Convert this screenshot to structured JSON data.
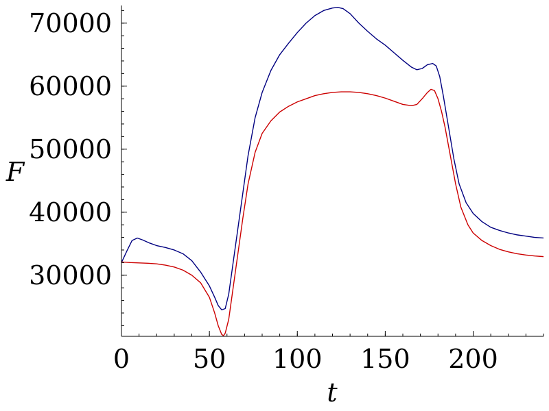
{
  "chart_data": {
    "type": "line",
    "title": "",
    "xlabel": "t",
    "ylabel": "F",
    "xlim": [
      0,
      240
    ],
    "ylim": [
      20300,
      72800
    ],
    "x_ticks": [
      {
        "value": 0,
        "label": "0"
      },
      {
        "value": 50,
        "label": "50"
      },
      {
        "value": 100,
        "label": "100"
      },
      {
        "value": 150,
        "label": "150"
      },
      {
        "value": 200,
        "label": "200"
      }
    ],
    "y_ticks": [
      {
        "value": 30000,
        "label": "30000"
      },
      {
        "value": 40000,
        "label": "40000"
      },
      {
        "value": 50000,
        "label": "50000"
      },
      {
        "value": 60000,
        "label": "60000"
      },
      {
        "value": 70000,
        "label": "70000"
      }
    ],
    "x_minor_step": 10,
    "y_minor_step": 2000,
    "grid": false,
    "legend": "none",
    "series": [
      {
        "color": "#000080",
        "points": [
          [
            0,
            32000
          ],
          [
            3,
            33800
          ],
          [
            6,
            35500
          ],
          [
            9,
            35900
          ],
          [
            12,
            35600
          ],
          [
            16,
            35100
          ],
          [
            20,
            34700
          ],
          [
            25,
            34400
          ],
          [
            30,
            34000
          ],
          [
            35,
            33400
          ],
          [
            40,
            32300
          ],
          [
            45,
            30500
          ],
          [
            50,
            28300
          ],
          [
            53,
            26500
          ],
          [
            55,
            25200
          ],
          [
            57,
            24500
          ],
          [
            59,
            24700
          ],
          [
            61,
            27000
          ],
          [
            63,
            31000
          ],
          [
            66,
            37000
          ],
          [
            69,
            43000
          ],
          [
            72,
            49000
          ],
          [
            76,
            55000
          ],
          [
            80,
            59000
          ],
          [
            85,
            62500
          ],
          [
            90,
            65000
          ],
          [
            95,
            66800
          ],
          [
            100,
            68500
          ],
          [
            105,
            70000
          ],
          [
            110,
            71200
          ],
          [
            115,
            72000
          ],
          [
            120,
            72400
          ],
          [
            123,
            72500
          ],
          [
            126,
            72300
          ],
          [
            130,
            71500
          ],
          [
            135,
            70000
          ],
          [
            140,
            68700
          ],
          [
            145,
            67500
          ],
          [
            150,
            66500
          ],
          [
            155,
            65300
          ],
          [
            160,
            64100
          ],
          [
            165,
            63000
          ],
          [
            168,
            62600
          ],
          [
            171,
            62800
          ],
          [
            174,
            63400
          ],
          [
            177,
            63600
          ],
          [
            179,
            63200
          ],
          [
            181,
            61500
          ],
          [
            183,
            58500
          ],
          [
            186,
            53500
          ],
          [
            189,
            48500
          ],
          [
            192,
            44500
          ],
          [
            196,
            41500
          ],
          [
            200,
            39800
          ],
          [
            205,
            38500
          ],
          [
            210,
            37600
          ],
          [
            215,
            37100
          ],
          [
            220,
            36700
          ],
          [
            225,
            36400
          ],
          [
            230,
            36200
          ],
          [
            235,
            36000
          ],
          [
            240,
            35900
          ]
        ]
      },
      {
        "color": "#cc0000",
        "points": [
          [
            0,
            32100
          ],
          [
            5,
            32000
          ],
          [
            10,
            31950
          ],
          [
            15,
            31900
          ],
          [
            20,
            31800
          ],
          [
            25,
            31600
          ],
          [
            30,
            31300
          ],
          [
            35,
            30800
          ],
          [
            40,
            30000
          ],
          [
            45,
            28800
          ],
          [
            50,
            26500
          ],
          [
            53,
            24000
          ],
          [
            55,
            22000
          ],
          [
            57,
            20600
          ],
          [
            58,
            20400
          ],
          [
            59,
            20800
          ],
          [
            61,
            23000
          ],
          [
            63,
            27000
          ],
          [
            66,
            33000
          ],
          [
            69,
            39000
          ],
          [
            72,
            44500
          ],
          [
            76,
            49500
          ],
          [
            80,
            52500
          ],
          [
            85,
            54500
          ],
          [
            90,
            55900
          ],
          [
            95,
            56800
          ],
          [
            100,
            57500
          ],
          [
            105,
            58000
          ],
          [
            110,
            58500
          ],
          [
            115,
            58800
          ],
          [
            120,
            59000
          ],
          [
            125,
            59100
          ],
          [
            130,
            59100
          ],
          [
            135,
            59000
          ],
          [
            140,
            58800
          ],
          [
            145,
            58500
          ],
          [
            150,
            58100
          ],
          [
            155,
            57600
          ],
          [
            160,
            57100
          ],
          [
            165,
            56900
          ],
          [
            168,
            57100
          ],
          [
            171,
            58000
          ],
          [
            174,
            59000
          ],
          [
            176,
            59500
          ],
          [
            178,
            59300
          ],
          [
            180,
            58000
          ],
          [
            182,
            56000
          ],
          [
            184,
            53500
          ],
          [
            187,
            49000
          ],
          [
            190,
            44500
          ],
          [
            193,
            40800
          ],
          [
            197,
            38000
          ],
          [
            200,
            36700
          ],
          [
            205,
            35500
          ],
          [
            210,
            34700
          ],
          [
            215,
            34100
          ],
          [
            220,
            33700
          ],
          [
            225,
            33400
          ],
          [
            230,
            33200
          ],
          [
            235,
            33050
          ],
          [
            240,
            32950
          ]
        ]
      }
    ]
  }
}
